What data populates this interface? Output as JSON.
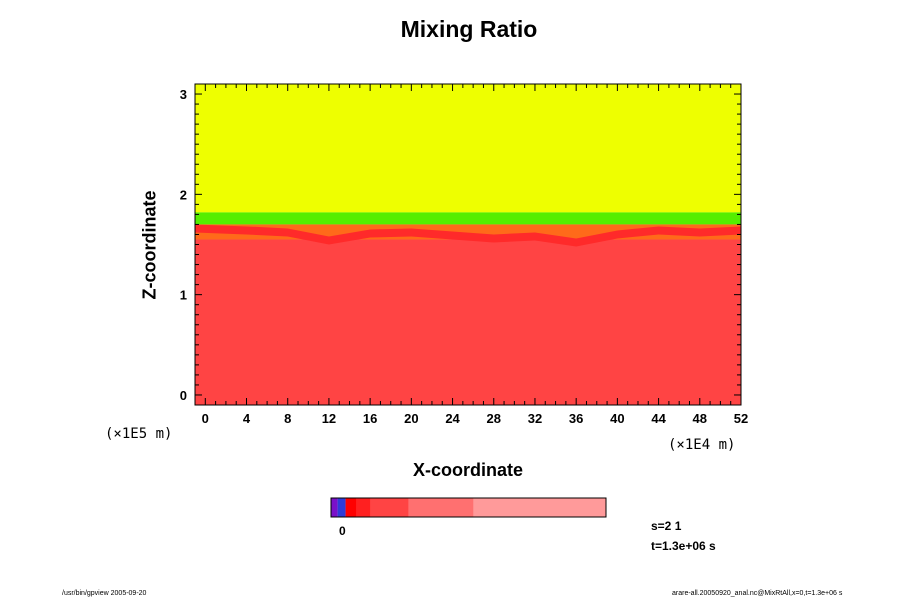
{
  "chart_data": {
    "type": "heatmap",
    "title": "Mixing Ratio",
    "xlabel": "X-coordinate",
    "ylabel": "Z-coordinate",
    "x_unit": "(×1E4 m)",
    "y_unit": "(×1E5 m)",
    "xlim": [
      -1,
      52
    ],
    "ylim": [
      -0.1,
      3.1
    ],
    "x_ticks": [
      0,
      4,
      8,
      12,
      16,
      20,
      24,
      28,
      32,
      36,
      40,
      44,
      48,
      52
    ],
    "y_ticks": [
      0,
      1,
      2,
      3
    ],
    "field": {
      "layers": [
        {
          "description": "upper layer",
          "z_range": [
            1.82,
            3.1
          ],
          "color": "#eeff00"
        },
        {
          "description": "transition layer",
          "z_range": [
            1.7,
            1.82
          ],
          "color": "#55ee00"
        },
        {
          "description": "interface layer",
          "z_range": [
            1.55,
            1.7
          ],
          "color": "#ff6a1a"
        },
        {
          "description": "lower layer",
          "z_range": [
            -0.1,
            1.55
          ],
          "color": "#ff4444"
        }
      ],
      "interface_profile": {
        "x": [
          -1,
          4,
          8,
          12,
          16,
          20,
          24,
          28,
          32,
          36,
          40,
          44,
          48,
          52
        ],
        "z": [
          1.62,
          1.6,
          1.58,
          1.5,
          1.57,
          1.58,
          1.55,
          1.52,
          1.54,
          1.48,
          1.56,
          1.6,
          1.58,
          1.6
        ]
      }
    },
    "colorbar": {
      "label": "0",
      "segments": [
        {
          "fraction": 0.024,
          "color": "#7a10c8"
        },
        {
          "fraction": 0.029,
          "color": "#2f3bd8"
        },
        {
          "fraction": 0.04,
          "color": "#ff0000"
        },
        {
          "fraction": 0.051,
          "color": "#ff2020"
        },
        {
          "fraction": 0.138,
          "color": "#ff4444"
        },
        {
          "fraction": 0.236,
          "color": "#ff7070"
        },
        {
          "fraction": 0.482,
          "color": "#ff9a9a"
        }
      ]
    }
  },
  "annotations": {
    "step": "s=2 1",
    "time": "t=1.3e+06 s"
  },
  "footer": {
    "left": "/usr/bin/gpview 2005-09-20",
    "right": "arare-all.20050920_anal.nc@MixRtAll,x=0,t=1.3e+06 s"
  }
}
